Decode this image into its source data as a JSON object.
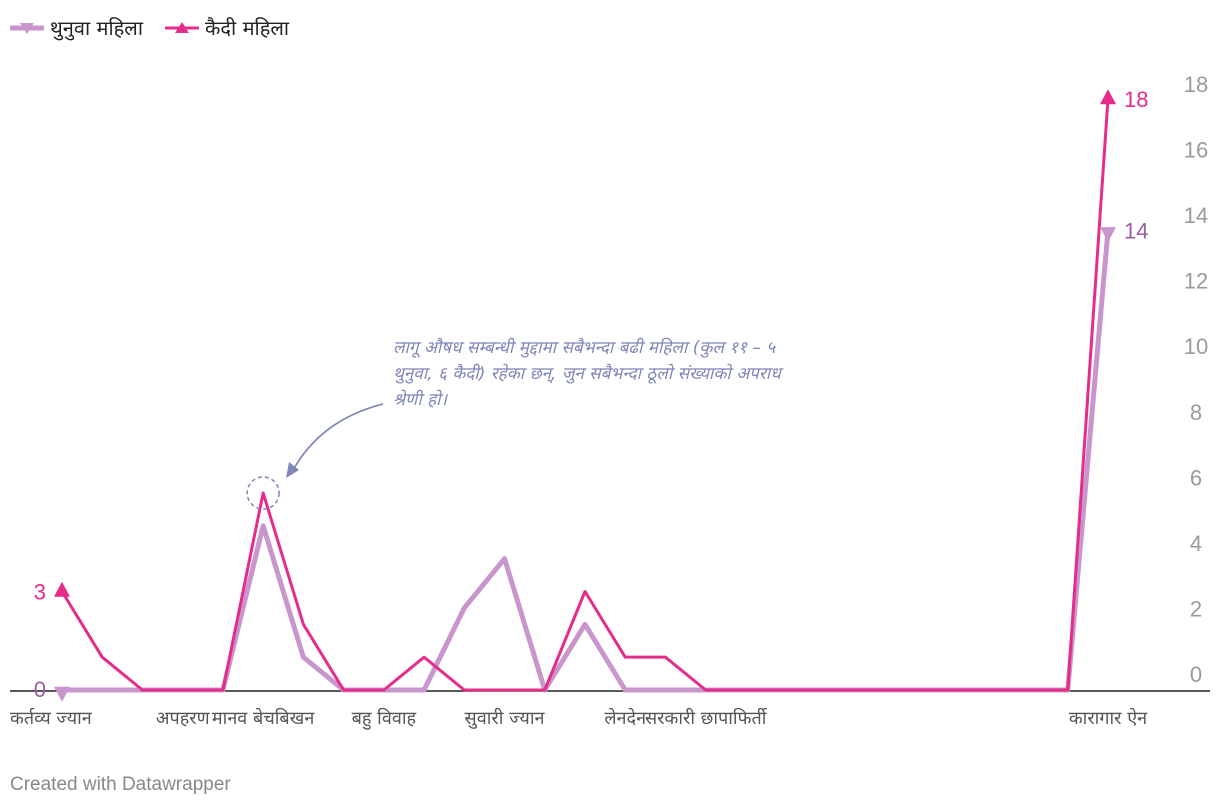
{
  "chart_data": {
    "type": "line",
    "categories": [
      "कर्तव्य ज्यान",
      "",
      "",
      "अपहरण",
      "",
      "मानव बेचबिखन",
      "",
      "",
      "बहु विवाह",
      "",
      "",
      "सुवारी ज्यान",
      "",
      "",
      "लेनदेन",
      "",
      "सरकारी छापाफिर्ती",
      "",
      "",
      "",
      "",
      "",
      "",
      "",
      "",
      "",
      "कारागार ऐन"
    ],
    "series": [
      {
        "name": "थुनुवा महिला",
        "color": "#c896cc",
        "marker": "triangle-down",
        "values": [
          0,
          0,
          0,
          0,
          0,
          5,
          1,
          0,
          0,
          0,
          2.5,
          4,
          0,
          2,
          0,
          0,
          0,
          0,
          0,
          0,
          0,
          0,
          0,
          0,
          0,
          0,
          14
        ]
      },
      {
        "name": "कैदी महिला",
        "color": "#e52c8a",
        "marker": "triangle-up",
        "values": [
          3,
          1,
          0,
          0,
          0,
          6,
          2,
          0,
          0,
          1,
          0,
          0,
          0,
          3,
          1,
          1,
          0,
          0,
          0,
          0,
          0,
          0,
          0,
          0,
          0,
          0,
          18
        ]
      }
    ],
    "start_labels": [
      "0",
      "3"
    ],
    "end_labels": [
      "14",
      "18"
    ],
    "y_axis": {
      "ticks": [
        "18",
        "16",
        "14",
        "12",
        "10",
        "8",
        "6",
        "4",
        "2",
        "0"
      ],
      "position": "right"
    },
    "annotation": {
      "lines": [
        "लागू औषध सम्बन्धी मुद्दामा सबैभन्दा बढी महिला (कुल ११ – ५",
        "थुनुवा, ६ कैदी) रहेका छन्, जुन सबैभन्दा ठूलो संख्याको अपराध",
        "श्रेणी हो।"
      ],
      "points_to_category": "मानव बेचबिखन",
      "color": "#7f86b8"
    },
    "grid": false,
    "legend_position": "top-left"
  },
  "legend": [
    {
      "label": "थुनुवा महिला",
      "color": "#c896cc"
    },
    {
      "label": "कैदी महिला",
      "color": "#e52c8a"
    }
  ],
  "credit": "Created with Datawrapper"
}
